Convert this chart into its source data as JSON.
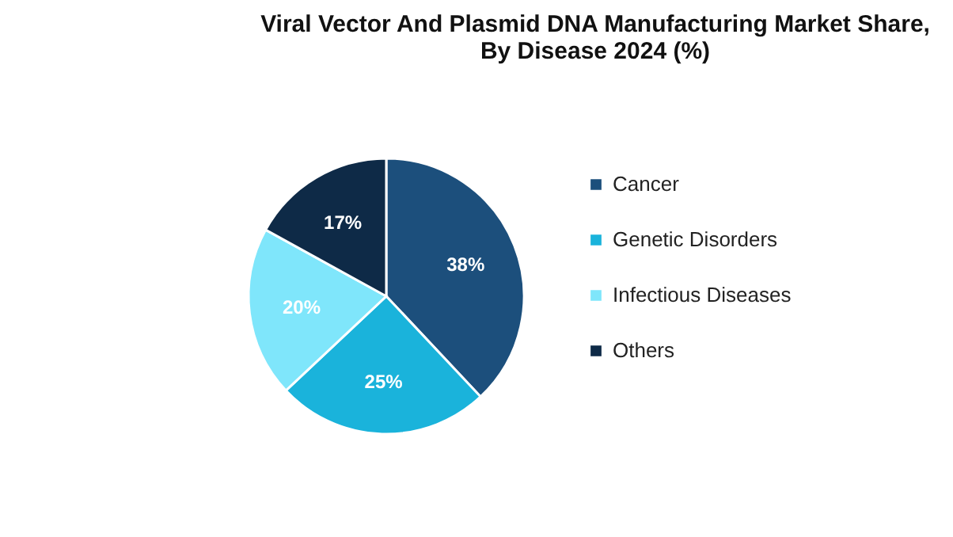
{
  "chart_data": {
    "type": "pie",
    "title": "Viral Vector And Plasmid DNA Manufacturing Market Share, By Disease 2024 (%)",
    "categories": [
      "Cancer",
      "Genetic Disorders",
      "Infectious Diseases",
      "Others"
    ],
    "values": [
      38,
      25,
      20,
      17
    ],
    "colors": [
      "#1c4f7c",
      "#1ab3db",
      "#7fe6fb",
      "#0e2a47"
    ],
    "value_labels": [
      "38%",
      "25%",
      "20%",
      "17%"
    ],
    "legend": "right"
  }
}
